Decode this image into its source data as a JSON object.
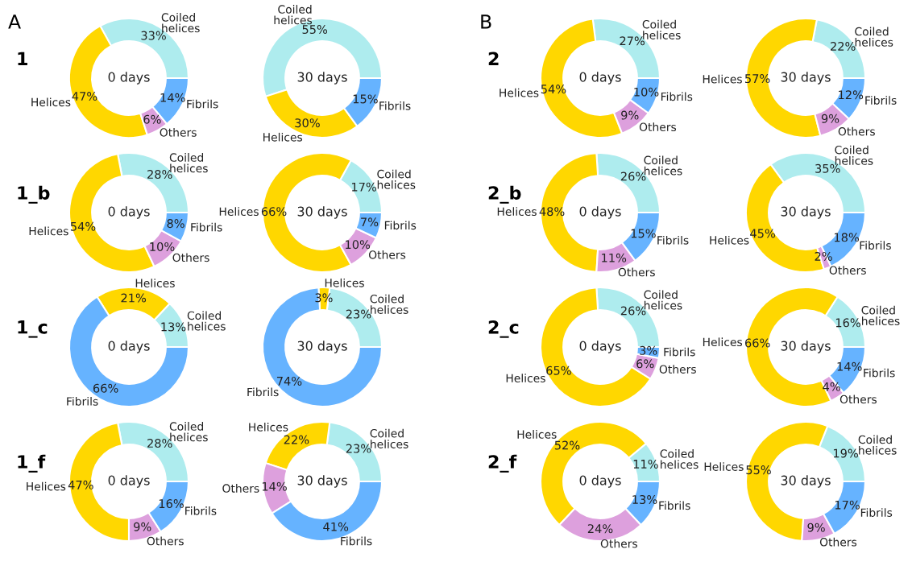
{
  "chart_data": [
    {
      "type": "donut",
      "title": "1",
      "annotations": [
        "0 days",
        "A"
      ],
      "categories": [
        "Coiled helices",
        "Helices",
        "Others",
        "Fibrils"
      ],
      "values": [
        33,
        47,
        6,
        14
      ],
      "value_labels": [
        "33%",
        "47%",
        "6%",
        "14%"
      ],
      "colors": [
        "#aeecee",
        "#ffd700",
        "#dda0dd",
        "#66b3ff"
      ]
    },
    {
      "type": "donut",
      "annotations": [
        "30 days"
      ],
      "categories": [
        "Coiled helices",
        "Helices",
        "Fibrils"
      ],
      "values": [
        55,
        30,
        15
      ],
      "value_labels": [
        "55%",
        "30%",
        "15%"
      ],
      "colors": [
        "#aeecee",
        "#ffd700",
        "#66b3ff"
      ]
    },
    {
      "type": "donut",
      "title": "2",
      "annotations": [
        "0 days",
        "B"
      ],
      "categories": [
        "Coiled helices",
        "Helices",
        "Others",
        "Fibrils"
      ],
      "values": [
        27,
        54,
        9,
        10
      ],
      "value_labels": [
        "27%",
        "54%",
        "9%",
        "10%"
      ],
      "colors": [
        "#aeecee",
        "#ffd700",
        "#dda0dd",
        "#66b3ff"
      ]
    },
    {
      "type": "donut",
      "annotations": [
        "30 days"
      ],
      "categories": [
        "Coiled helices",
        "Helices",
        "Others",
        "Fibrils"
      ],
      "values": [
        22,
        57,
        9,
        12
      ],
      "value_labels": [
        "22%",
        "57%",
        "9%",
        "12%"
      ],
      "colors": [
        "#aeecee",
        "#ffd700",
        "#dda0dd",
        "#66b3ff"
      ]
    },
    {
      "type": "donut",
      "title": "1_b",
      "annotations": [
        "0 days"
      ],
      "categories": [
        "Coiled helices",
        "Helices",
        "Others",
        "Fibrils"
      ],
      "values": [
        28,
        54,
        10,
        8
      ],
      "value_labels": [
        "28%",
        "54%",
        "10%",
        "8%"
      ],
      "colors": [
        "#aeecee",
        "#ffd700",
        "#dda0dd",
        "#66b3ff"
      ]
    },
    {
      "type": "donut",
      "annotations": [
        "30 days"
      ],
      "categories": [
        "Coiled helices",
        "Helices",
        "Others",
        "Fibrils"
      ],
      "values": [
        17,
        66,
        10,
        7
      ],
      "value_labels": [
        "17%",
        "66%",
        "10%",
        "7%"
      ],
      "colors": [
        "#aeecee",
        "#ffd700",
        "#dda0dd",
        "#66b3ff"
      ]
    },
    {
      "type": "donut",
      "title": "2_b",
      "annotations": [
        "0 days"
      ],
      "categories": [
        "Coiled helices",
        "Helices",
        "Others",
        "Fibrils"
      ],
      "values": [
        26,
        48,
        11,
        15
      ],
      "value_labels": [
        "26%",
        "48%",
        "11%",
        "15%"
      ],
      "colors": [
        "#aeecee",
        "#ffd700",
        "#dda0dd",
        "#66b3ff"
      ]
    },
    {
      "type": "donut",
      "annotations": [
        "30 days"
      ],
      "categories": [
        "Coiled helices",
        "Helices",
        "Others",
        "Fibrils"
      ],
      "values": [
        35,
        45,
        2,
        18
      ],
      "value_labels": [
        "35%",
        "45%",
        "2%",
        "18%"
      ],
      "colors": [
        "#aeecee",
        "#ffd700",
        "#dda0dd",
        "#66b3ff"
      ]
    },
    {
      "type": "donut",
      "title": "1_c",
      "annotations": [
        "0 days"
      ],
      "categories": [
        "Coiled helices",
        "Helices",
        "Fibrils"
      ],
      "values": [
        13,
        21,
        66
      ],
      "value_labels": [
        "13%",
        "21%",
        "66%"
      ],
      "colors": [
        "#aeecee",
        "#ffd700",
        "#66b3ff"
      ]
    },
    {
      "type": "donut",
      "annotations": [
        "30 days"
      ],
      "categories": [
        "Coiled helices",
        "Helices",
        "Fibrils"
      ],
      "values": [
        23,
        3,
        74
      ],
      "value_labels": [
        "23%",
        "3%",
        "74%"
      ],
      "colors": [
        "#aeecee",
        "#ffd700",
        "#66b3ff"
      ]
    },
    {
      "type": "donut",
      "title": "2_c",
      "annotations": [
        "0 days"
      ],
      "categories": [
        "Coiled helices",
        "Helices",
        "Others",
        "Fibrils"
      ],
      "values": [
        26,
        65,
        6,
        3
      ],
      "value_labels": [
        "26%",
        "65%",
        "6%",
        "3%"
      ],
      "colors": [
        "#aeecee",
        "#ffd700",
        "#dda0dd",
        "#66b3ff"
      ]
    },
    {
      "type": "donut",
      "annotations": [
        "30 days"
      ],
      "categories": [
        "Coiled helices",
        "Helices",
        "Others",
        "Fibrils"
      ],
      "values": [
        16,
        66,
        4,
        14
      ],
      "value_labels": [
        "16%",
        "66%",
        "4%",
        "14%"
      ],
      "colors": [
        "#aeecee",
        "#ffd700",
        "#dda0dd",
        "#66b3ff"
      ]
    },
    {
      "type": "donut",
      "title": "1_f",
      "annotations": [
        "0 days"
      ],
      "categories": [
        "Coiled helices",
        "Helices",
        "Others",
        "Fibrils"
      ],
      "values": [
        28,
        47,
        9,
        16
      ],
      "value_labels": [
        "28%",
        "47%",
        "9%",
        "16%"
      ],
      "colors": [
        "#aeecee",
        "#ffd700",
        "#dda0dd",
        "#66b3ff"
      ]
    },
    {
      "type": "donut",
      "annotations": [
        "30 days"
      ],
      "categories": [
        "Coiled helices",
        "Helices",
        "Others",
        "Fibrils"
      ],
      "values": [
        23,
        22,
        14,
        41
      ],
      "value_labels": [
        "23%",
        "22%",
        "14%",
        "41%"
      ],
      "colors": [
        "#aeecee",
        "#ffd700",
        "#dda0dd",
        "#66b3ff"
      ]
    },
    {
      "type": "donut",
      "title": "2_f",
      "annotations": [
        "0 days"
      ],
      "categories": [
        "Coiled helices",
        "Helices",
        "Others",
        "Fibrils"
      ],
      "values": [
        11,
        52,
        24,
        13
      ],
      "value_labels": [
        "11%",
        "52%",
        "24%",
        "13%"
      ],
      "colors": [
        "#aeecee",
        "#ffd700",
        "#dda0dd",
        "#66b3ff"
      ]
    },
    {
      "type": "donut",
      "annotations": [
        "30 days"
      ],
      "categories": [
        "Coiled helices",
        "Helices",
        "Others",
        "Fibrils"
      ],
      "values": [
        19,
        55,
        9,
        17
      ],
      "value_labels": [
        "19%",
        "55%",
        "9%",
        "17%"
      ],
      "colors": [
        "#aeecee",
        "#ffd700",
        "#dda0dd",
        "#66b3ff"
      ]
    }
  ]
}
